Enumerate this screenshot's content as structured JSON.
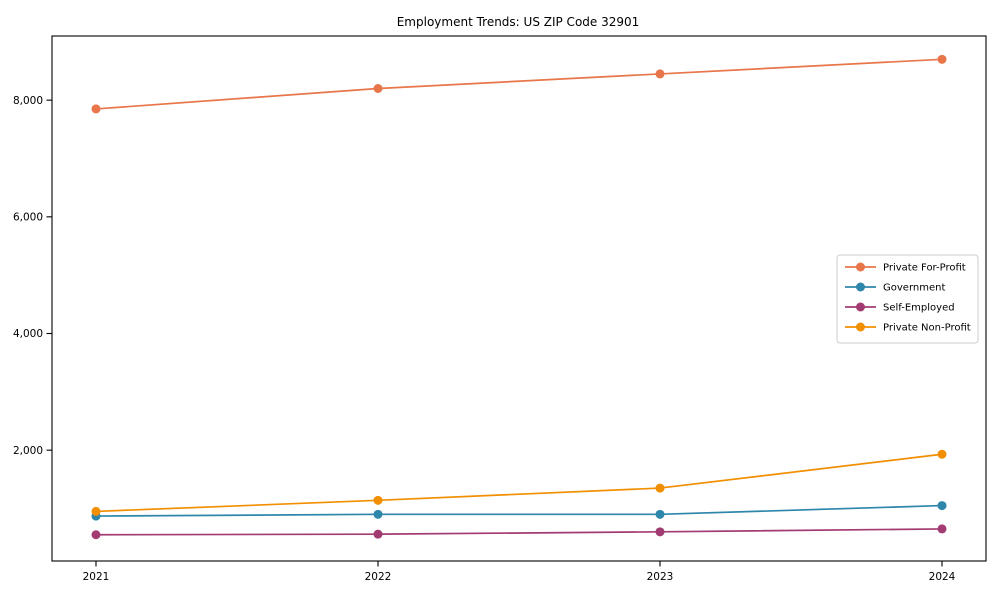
{
  "figure": {
    "background_color": "#ffffff",
    "spine_color": "#000000"
  },
  "chart_data": {
    "type": "line",
    "title": "Employment Trends: US ZIP Code 32901",
    "xlabel": "",
    "ylabel": "",
    "categories": [
      "2021",
      "2022",
      "2023",
      "2024"
    ],
    "series": [
      {
        "name": "Private For-Profit",
        "color": "#E8764A",
        "values": [
          7850,
          8200,
          8450,
          8700
        ]
      },
      {
        "name": "Government",
        "color": "#2E86AB",
        "values": [
          870,
          900,
          900,
          1050
        ]
      },
      {
        "name": "Self-Employed",
        "color": "#A23B72",
        "values": [
          550,
          560,
          600,
          650
        ]
      },
      {
        "name": "Private Non-Profit",
        "color": "#F18F01",
        "values": [
          950,
          1140,
          1350,
          1930
        ]
      }
    ],
    "yticks": [
      2000,
      4000,
      6000,
      8000
    ],
    "ytick_labels": [
      "2,000",
      "4,000",
      "6,000",
      "8,000"
    ],
    "ylim": [
      100,
      9100
    ],
    "grid": false,
    "marker": "circle",
    "legend": {
      "position": "center-right",
      "entries": [
        "Private For-Profit",
        "Government",
        "Self-Employed",
        "Private Non-Profit"
      ]
    }
  }
}
